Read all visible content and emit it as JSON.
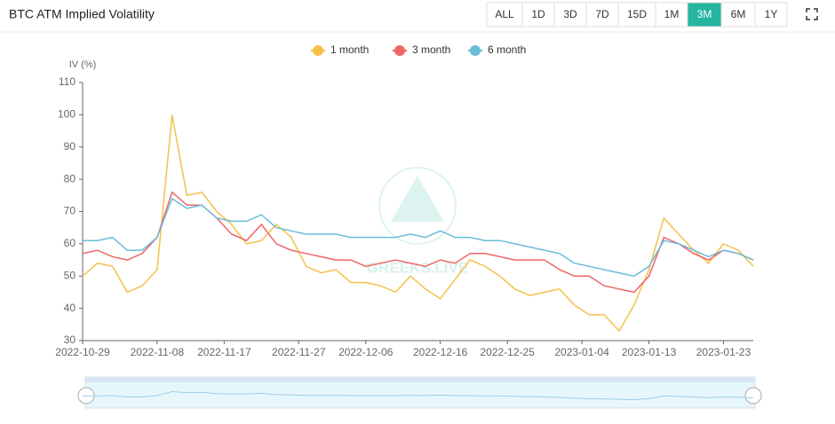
{
  "header": {
    "title": "BTC ATM Implied Volatility",
    "buttons": [
      "ALL",
      "1D",
      "3D",
      "7D",
      "15D",
      "1M",
      "3M",
      "6M",
      "1Y"
    ],
    "active_button": 6
  },
  "chart_data": {
    "type": "line",
    "y_label": "IV (%)",
    "watermark": "GREEKS.LIVE",
    "x": [
      "2022-10-29",
      "2022-10-31",
      "2022-11-02",
      "2022-11-04",
      "2022-11-06",
      "2022-11-08",
      "2022-11-10",
      "2022-11-12",
      "2022-11-14",
      "2022-11-16",
      "2022-11-18",
      "2022-11-20",
      "2022-11-22",
      "2022-11-24",
      "2022-11-26",
      "2022-11-28",
      "2022-11-30",
      "2022-12-02",
      "2022-12-04",
      "2022-12-06",
      "2022-12-08",
      "2022-12-10",
      "2022-12-12",
      "2022-12-14",
      "2022-12-16",
      "2022-12-18",
      "2022-12-20",
      "2022-12-22",
      "2022-12-24",
      "2022-12-26",
      "2022-12-28",
      "2022-12-30",
      "2023-01-01",
      "2023-01-03",
      "2023-01-05",
      "2023-01-07",
      "2023-01-09",
      "2023-01-11",
      "2023-01-13",
      "2023-01-15",
      "2023-01-17",
      "2023-01-19",
      "2023-01-21",
      "2023-01-23",
      "2023-01-25",
      "2023-01-27"
    ],
    "series": [
      {
        "name": "1 month",
        "color": "#f5c04a",
        "values": [
          50,
          54,
          53,
          45,
          47,
          52,
          100,
          75,
          76,
          70,
          66,
          60,
          61,
          66,
          62,
          53,
          51,
          52,
          48,
          48,
          47,
          45,
          50,
          46,
          43,
          49,
          55,
          53,
          50,
          46,
          44,
          45,
          46,
          41,
          38,
          38,
          33,
          41,
          52,
          68,
          63,
          58,
          54,
          60,
          58,
          53
        ]
      },
      {
        "name": "3 month",
        "color": "#ee6666",
        "values": [
          57,
          58,
          56,
          55,
          57,
          62,
          76,
          72,
          72,
          68,
          63,
          61,
          66,
          60,
          58,
          57,
          56,
          55,
          55,
          53,
          54,
          55,
          54,
          53,
          55,
          54,
          57,
          57,
          56,
          55,
          55,
          55,
          52,
          50,
          50,
          47,
          46,
          45,
          50,
          62,
          60,
          57,
          55,
          58,
          57,
          55
        ]
      },
      {
        "name": "6 month",
        "color": "#6bbcd8",
        "values": [
          61,
          61,
          62,
          58,
          58,
          62,
          74,
          71,
          72,
          68,
          67,
          67,
          69,
          65,
          64,
          63,
          63,
          63,
          62,
          62,
          62,
          62,
          63,
          62,
          64,
          62,
          62,
          61,
          61,
          60,
          59,
          58,
          57,
          54,
          53,
          52,
          51,
          50,
          53,
          61,
          60,
          58,
          56,
          58,
          57,
          55
        ]
      }
    ],
    "xlim": [
      "2022-10-29",
      "2023-01-27"
    ],
    "xticks": [
      "2022-10-29",
      "2022-11-08",
      "2022-11-17",
      "2022-11-27",
      "2022-12-06",
      "2022-12-16",
      "2022-12-25",
      "2023-01-04",
      "2023-01-13",
      "2023-01-23"
    ],
    "ylim": [
      30,
      110
    ],
    "yticks": [
      30,
      40,
      50,
      60,
      70,
      80,
      90,
      100,
      110
    ],
    "grid": false,
    "legend": "top"
  }
}
